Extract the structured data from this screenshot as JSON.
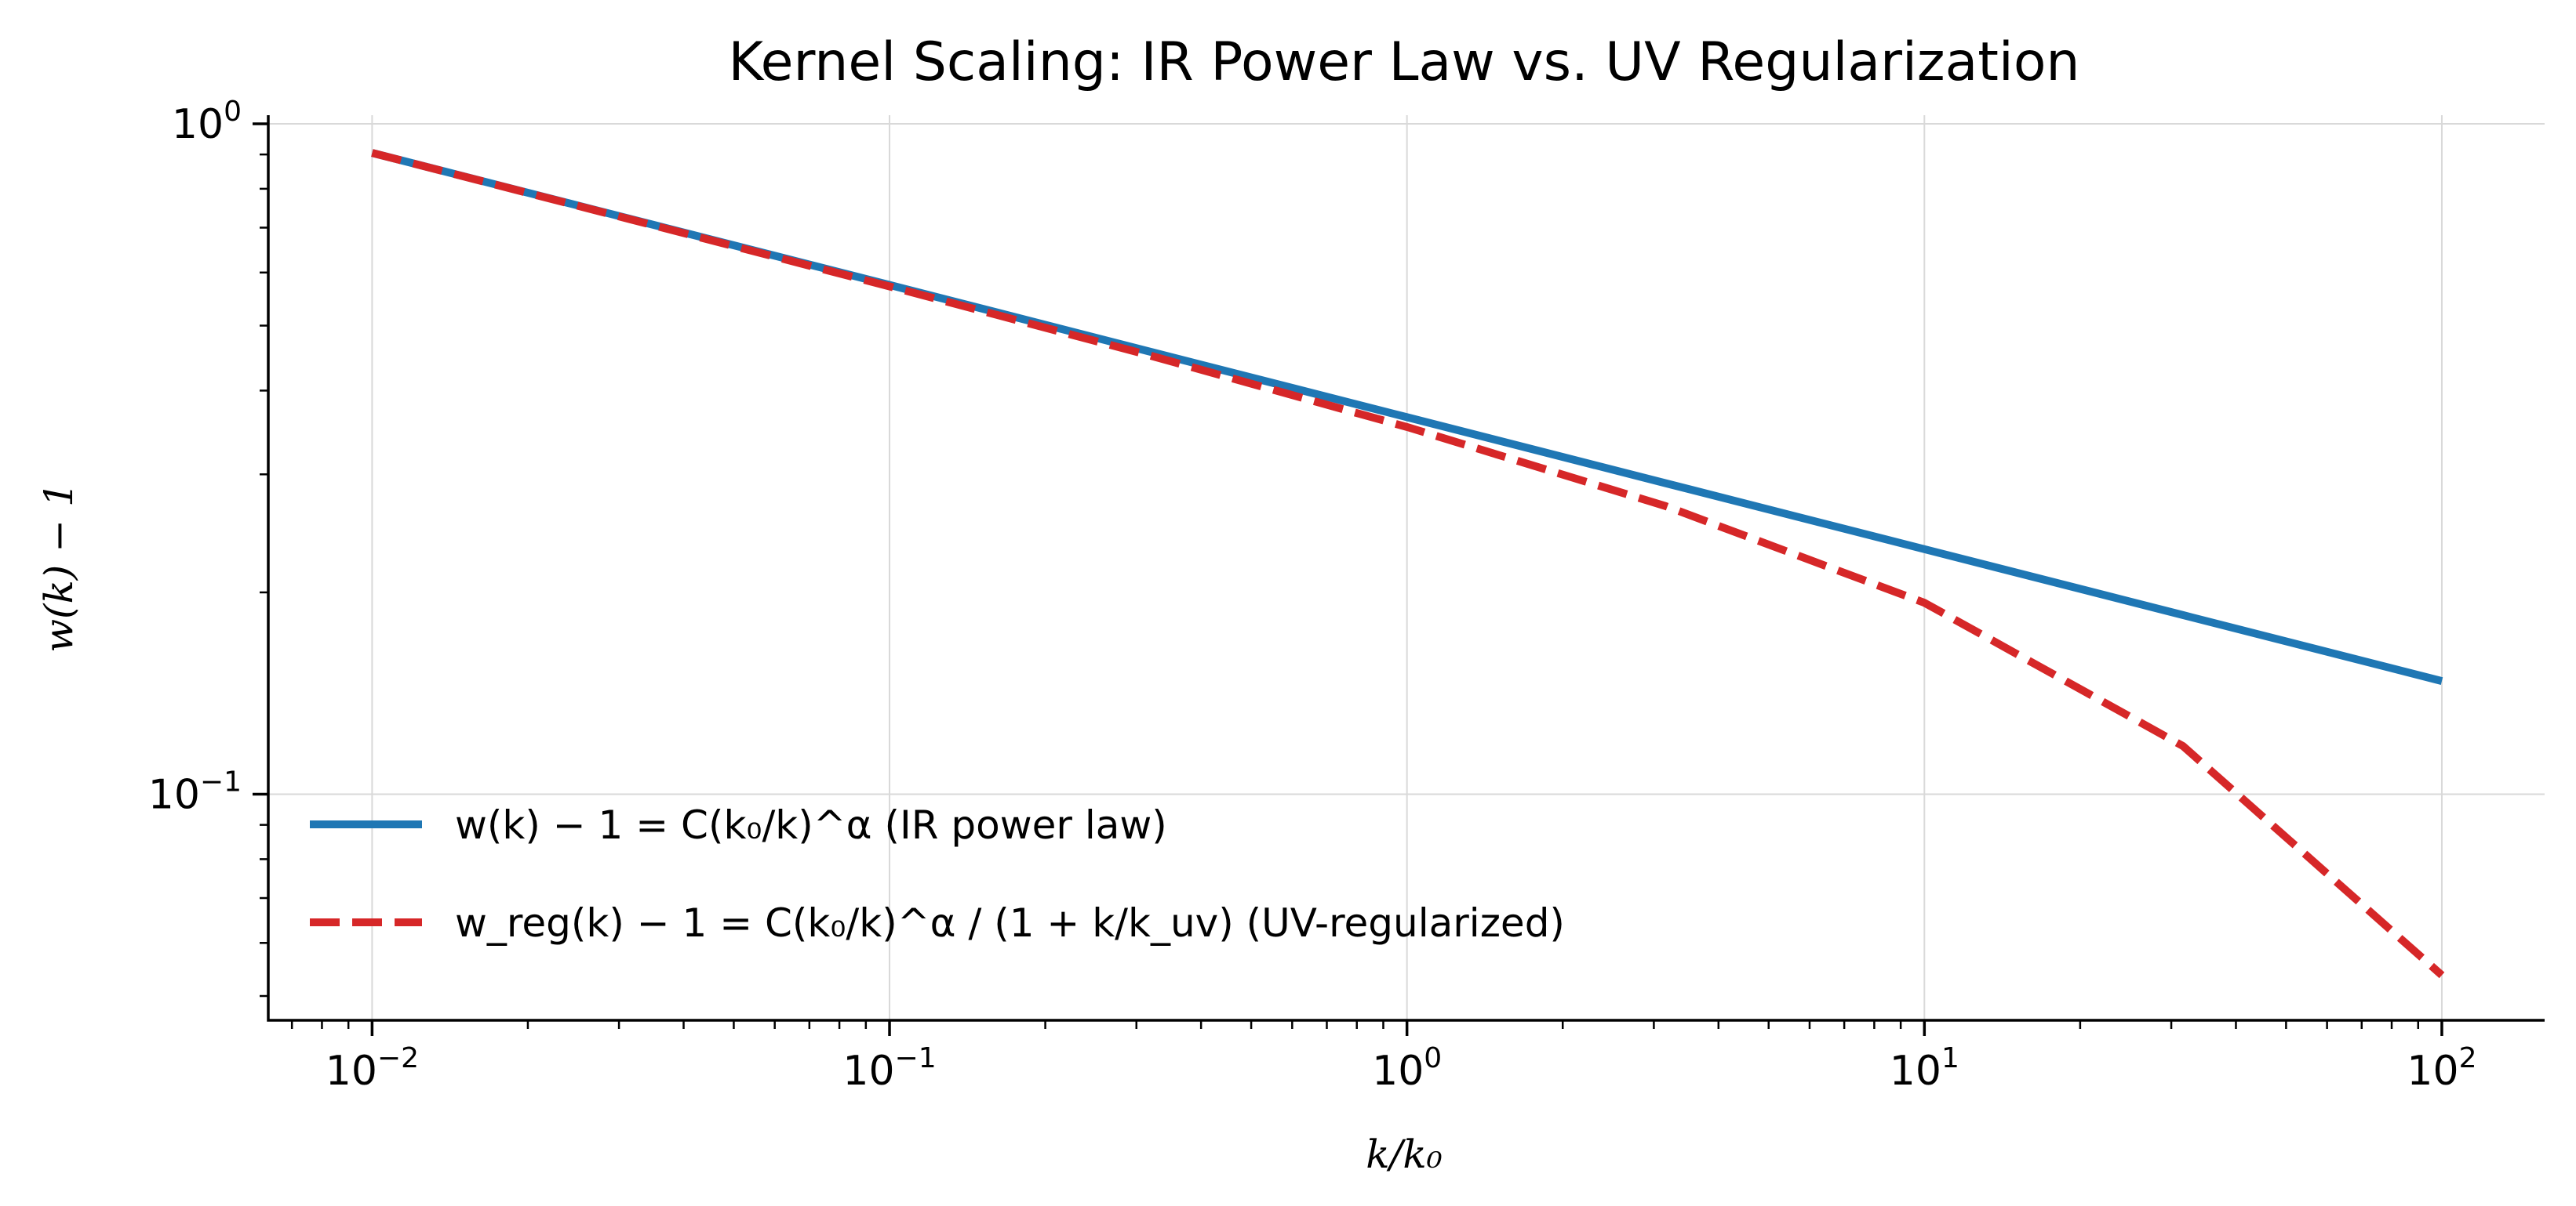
{
  "chart_data": {
    "type": "line",
    "title": "Kernel Scaling: IR Power Law vs. UV Regularization",
    "xlabel": "k/k₀",
    "ylabel": "w(k) − 1",
    "xscale": "log",
    "yscale": "log",
    "xlim": [
      0.0063,
      158
    ],
    "ylim": [
      0.046,
      1.03
    ],
    "xticks": [
      0.01,
      0.1,
      1,
      10,
      100
    ],
    "xtick_labels": [
      {
        "base": "10",
        "exp": "−2"
      },
      {
        "base": "10",
        "exp": "−1"
      },
      {
        "base": "10",
        "exp": "0"
      },
      {
        "base": "10",
        "exp": "1"
      },
      {
        "base": "10",
        "exp": "2"
      }
    ],
    "yticks": [
      0.1,
      1
    ],
    "ytick_labels": [
      {
        "base": "10",
        "exp": "−1"
      },
      {
        "base": "10",
        "exp": "0"
      }
    ],
    "grid": true,
    "legend_position": "lower-left",
    "x": [
      0.01,
      0.0316,
      0.1,
      0.316,
      1,
      3.16,
      10,
      31.6,
      100
    ],
    "series": [
      {
        "name": "w(k) − 1 = C(k₀/k)^α (IR power law)",
        "color": "#1f77b4",
        "style": "solid",
        "values": [
          0.905,
          0.721,
          0.575,
          0.458,
          0.365,
          0.291,
          0.232,
          0.185,
          0.1475
        ]
      },
      {
        "name": "w_reg(k) − 1 = C(k₀/k)^α / (1 + k/k_uv) (UV-regularized)",
        "color": "#d62728",
        "style": "dashed",
        "values": [
          0.905,
          0.72,
          0.572,
          0.452,
          0.353,
          0.269,
          0.193,
          0.118,
          0.0537
        ]
      }
    ]
  }
}
